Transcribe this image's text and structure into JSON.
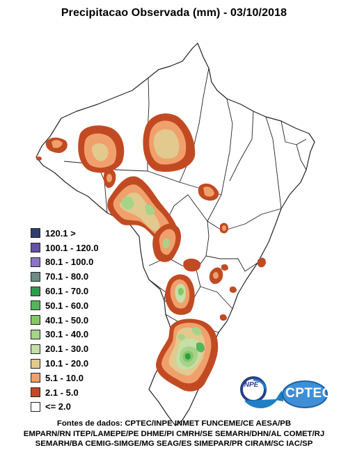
{
  "title": "Precipitacao Observada (mm) - 03/10/2018",
  "legend": [
    {
      "label": "120.1 >",
      "color": "#2e3e6e"
    },
    {
      "label": "100.1 - 120.0",
      "color": "#6652a6"
    },
    {
      "label": "80.1 - 100.0",
      "color": "#8a76c4"
    },
    {
      "label": "70.1 - 80.0",
      "color": "#6b8b83"
    },
    {
      "label": "60.1 - 70.0",
      "color": "#2e9c4c"
    },
    {
      "label": "50.1 - 60.0",
      "color": "#55b55a"
    },
    {
      "label": "40.1 - 50.0",
      "color": "#84c862"
    },
    {
      "label": "30.1 - 40.0",
      "color": "#a6d38a"
    },
    {
      "label": "20.1 - 30.0",
      "color": "#c6dfa6"
    },
    {
      "label": "10.1 - 20.0",
      "color": "#e2c98e"
    },
    {
      "label": "5.1 - 10.0",
      "color": "#f0a06c"
    },
    {
      "label": "2.1 - 5.0",
      "color": "#c24a22"
    },
    {
      "label": "<= 2.0",
      "color": "#ffffff"
    }
  ],
  "logos": {
    "inpe": "INPE",
    "cptec": "CPTEC"
  },
  "sources": [
    "Fontes de dados: CPTEC/INPE INMET FUNCEME/CE AESA/PB",
    "EMPARN/RN ITEP/LAMEPE/PE DHME/PI CMRH/SE SEMARH/DHN/AL COMET/RJ",
    "SEMARH/BA CEMIG-SIMGE/MG SEAG/ES SIMEPAR/PR CIRAM/SC IAC/SP"
  ]
}
